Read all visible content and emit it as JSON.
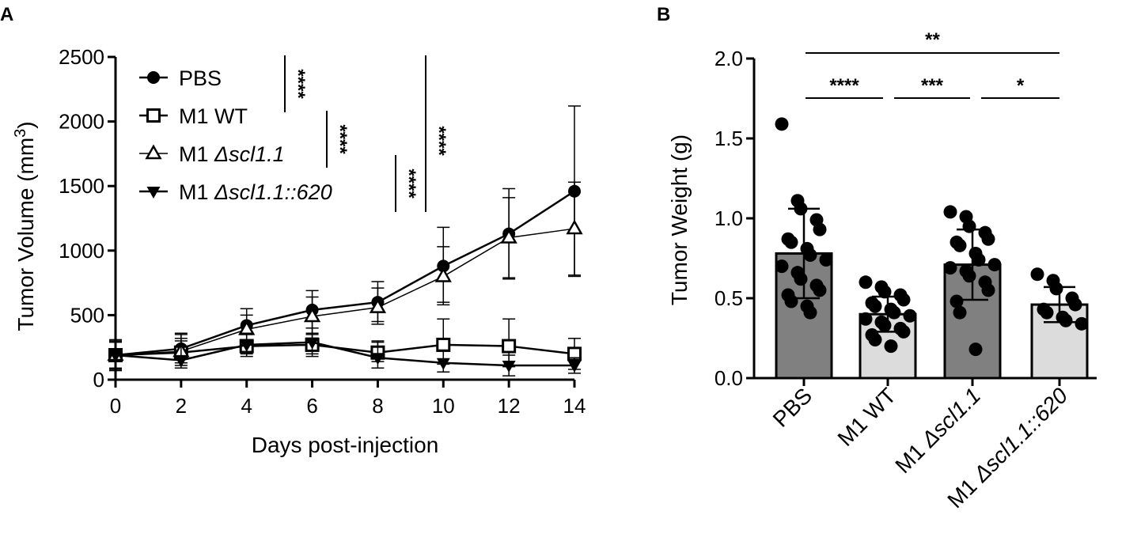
{
  "figure": {
    "panel_a_label": "A",
    "panel_b_label": "B"
  },
  "chart_data": [
    {
      "type": "line",
      "title": "",
      "xlabel": "Days post-injection",
      "ylabel": "Tumor Volume (mm",
      "ylabel_superscript": "3",
      "ylabel_close": ")",
      "xlim": [
        0,
        14
      ],
      "ylim": [
        0,
        2500
      ],
      "x_ticks": [
        "0",
        "2",
        "4",
        "6",
        "8",
        "10",
        "12",
        "14"
      ],
      "y_ticks": [
        "0",
        "500",
        "1000",
        "1500",
        "2000",
        "2500"
      ],
      "x": [
        0,
        2,
        4,
        6,
        8,
        10,
        12,
        14
      ],
      "legend_position": "top-left",
      "series": [
        {
          "name": "PBS",
          "name_prefix": "PBS",
          "name_italic": "",
          "marker": "circle-filled",
          "values": [
            190,
            240,
            420,
            540,
            600,
            880,
            1130,
            1460
          ],
          "err_up": [
            120,
            120,
            130,
            150,
            160,
            300,
            350,
            660
          ],
          "err_down": [
            120,
            110,
            110,
            140,
            150,
            300,
            350,
            660
          ]
        },
        {
          "name": "M1 WT",
          "name_prefix": "M1 WT",
          "name_italic": "",
          "marker": "square-open",
          "values": [
            190,
            210,
            260,
            270,
            210,
            270,
            260,
            200
          ],
          "err_up": [
            110,
            110,
            90,
            90,
            90,
            200,
            210,
            120
          ],
          "err_down": [
            110,
            80,
            60,
            70,
            70,
            150,
            160,
            120
          ]
        },
        {
          "name": "M1 Δscl1.1",
          "name_prefix": "M1 ",
          "name_italic": "Δscl1.1",
          "marker": "triangle-open",
          "values": [
            190,
            220,
            390,
            490,
            560,
            800,
            1100,
            1170
          ],
          "err_up": [
            110,
            130,
            110,
            150,
            150,
            230,
            310,
            360
          ],
          "err_down": [
            110,
            110,
            120,
            140,
            130,
            200,
            310,
            360
          ]
        },
        {
          "name": "M1 Δscl1.1::620",
          "name_prefix": "M1 ",
          "name_italic": "Δscl1.1::620",
          "marker": "triangle-down-filled",
          "values": [
            190,
            150,
            270,
            290,
            170,
            130,
            110,
            110
          ],
          "err_up": [
            100,
            150,
            90,
            110,
            120,
            100,
            80,
            60
          ],
          "err_down": [
            100,
            60,
            90,
            110,
            80,
            70,
            80,
            60
          ]
        }
      ],
      "significance": [
        {
          "label": "****",
          "compare": [
            "PBS",
            "M1 WT"
          ]
        },
        {
          "label": "****",
          "compare": [
            "M1 WT",
            "M1 Δscl1.1"
          ]
        },
        {
          "label": "****",
          "compare": [
            "M1 Δscl1.1",
            "M1 Δscl1.1::620"
          ]
        },
        {
          "label": "****",
          "compare": [
            "PBS",
            "M1 Δscl1.1::620"
          ]
        }
      ]
    },
    {
      "type": "bar",
      "title": "",
      "xlabel": "",
      "ylabel": "Tumor Weight (g)",
      "ylim": [
        0,
        2.0
      ],
      "y_ticks": [
        "0.0",
        "0.5",
        "1.0",
        "1.5",
        "2.0"
      ],
      "categories": [
        "PBS",
        "M1 WT",
        "M1 Δscl1.1",
        "M1 Δscl1.1::620"
      ],
      "category_prefix": [
        "PBS",
        "M1 WT",
        "M1 ",
        "M1 "
      ],
      "category_italic": [
        "",
        "",
        "Δscl1.1",
        "Δscl1.1::620"
      ],
      "values": [
        0.78,
        0.4,
        0.71,
        0.46
      ],
      "sd": [
        0.28,
        0.11,
        0.22,
        0.11
      ],
      "bar_colors": [
        "#808080",
        "#dcdcdc",
        "#808080",
        "#dcdcdc"
      ],
      "points": [
        [
          1.59,
          1.11,
          1.06,
          0.99,
          0.93,
          0.87,
          0.85,
          0.81,
          0.77,
          0.74,
          0.7,
          0.66,
          0.62,
          0.58,
          0.55,
          0.52,
          0.48,
          0.45,
          0.41
        ],
        [
          0.6,
          0.57,
          0.54,
          0.52,
          0.49,
          0.47,
          0.45,
          0.43,
          0.41,
          0.39,
          0.37,
          0.35,
          0.33,
          0.31,
          0.29,
          0.27,
          0.24,
          0.2
        ],
        [
          1.04,
          1.01,
          0.95,
          0.91,
          0.87,
          0.85,
          0.83,
          0.78,
          0.74,
          0.71,
          0.69,
          0.67,
          0.64,
          0.6,
          0.55,
          0.48,
          0.41,
          0.18
        ],
        [
          0.65,
          0.61,
          0.56,
          0.5,
          0.46,
          0.43,
          0.41,
          0.38,
          0.36,
          0.34
        ]
      ],
      "significance": [
        {
          "label": "**",
          "from": 0,
          "to": 3
        },
        {
          "label": "****",
          "from": 0,
          "to": 1
        },
        {
          "label": "***",
          "from": 1,
          "to": 2
        },
        {
          "label": "*",
          "from": 2,
          "to": 3
        }
      ]
    }
  ]
}
